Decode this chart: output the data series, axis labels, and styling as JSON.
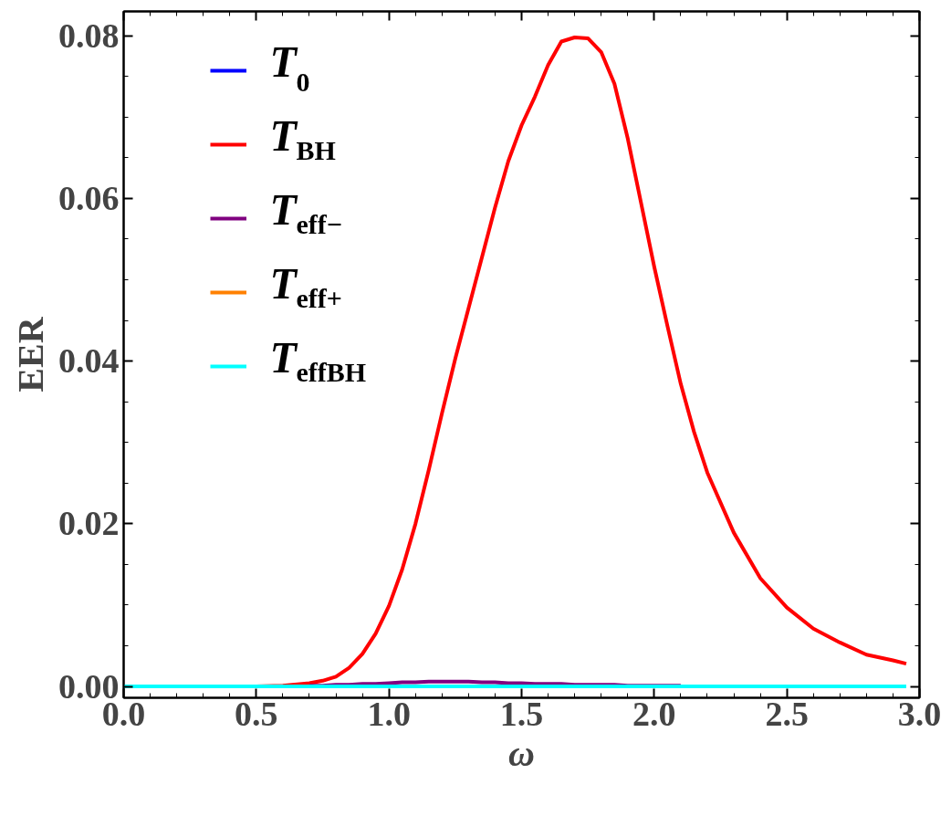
{
  "chart_data": {
    "type": "line",
    "xlabel": "ω",
    "ylabel": "EER",
    "x": [
      0,
      0.5,
      0.6,
      0.7,
      0.75,
      0.8,
      0.85,
      0.9,
      0.95,
      1.0,
      1.05,
      1.1,
      1.15,
      1.2,
      1.25,
      1.3,
      1.35,
      1.4,
      1.45,
      1.5,
      1.55,
      1.6,
      1.65,
      1.7,
      1.75,
      1.8,
      1.85,
      1.9,
      1.95,
      2.0,
      2.05,
      2.1,
      2.15,
      2.2,
      2.3,
      2.4,
      2.5,
      2.6,
      2.7,
      2.8,
      2.9,
      2.95
    ],
    "series": [
      {
        "name": "T$_{0}$",
        "color": "#0000ff",
        "values": [
          null,
          null,
          null,
          null,
          null,
          null,
          null,
          null,
          null,
          null,
          null,
          null,
          null,
          null,
          null,
          null,
          null,
          null,
          null,
          null,
          null,
          null,
          null,
          null,
          null,
          null,
          null,
          null,
          null,
          null,
          null,
          null,
          null,
          null,
          null,
          null,
          null,
          null,
          null,
          null,
          null,
          null
        ]
      },
      {
        "name": "T$_{BH}$",
        "color": "#ff0000",
        "values": [
          0,
          0,
          0.0001,
          0.0004,
          0.0007,
          0.0012,
          0.0023,
          0.004,
          0.0065,
          0.0099,
          0.0144,
          0.02,
          0.0266,
          0.0336,
          0.0403,
          0.0465,
          0.0527,
          0.0589,
          0.0646,
          0.069,
          0.0725,
          0.0764,
          0.0793,
          0.0798,
          0.0797,
          0.078,
          0.0741,
          0.0674,
          0.0595,
          0.0516,
          0.0443,
          0.0372,
          0.0313,
          0.0263,
          0.0189,
          0.0133,
          0.0097,
          0.0071,
          0.0054,
          0.0039,
          0.0032,
          0.0028
        ]
      },
      {
        "name": "T$_{eff−}$",
        "color": "#800080",
        "values": [
          null,
          null,
          null,
          0.0001,
          0.0001,
          0.0002,
          0.0002,
          0.0003,
          0.0003,
          0.0004,
          0.0005,
          0.0005,
          0.0006,
          0.0006,
          0.0006,
          0.0006,
          0.0005,
          0.0005,
          0.0004,
          0.0004,
          0.0003,
          0.0003,
          0.0003,
          0.0002,
          0.0002,
          0.0002,
          0.0002,
          0.0001,
          0.0001,
          0.0001,
          0.0001,
          0.0001,
          null,
          null,
          null,
          null,
          null,
          null,
          null,
          null,
          null,
          null
        ]
      },
      {
        "name": "T$_{eff+}$",
        "color": "#ff8000",
        "values": [
          null,
          null,
          null,
          null,
          null,
          null,
          null,
          null,
          null,
          null,
          null,
          null,
          null,
          null,
          null,
          null,
          null,
          null,
          null,
          null,
          null,
          null,
          null,
          null,
          null,
          null,
          null,
          null,
          null,
          null,
          null,
          null,
          null,
          null,
          null,
          null,
          null,
          null,
          null,
          null,
          null,
          null
        ]
      },
      {
        "name": "T$_{effBH}$",
        "color": "#00ffff",
        "values": [
          0,
          0,
          0,
          0,
          0,
          0,
          0,
          0,
          0,
          0,
          0,
          0,
          0,
          0,
          0,
          0,
          0,
          0,
          0,
          0,
          0,
          0,
          0,
          0,
          0,
          0,
          0,
          0,
          0,
          0,
          0,
          0,
          0,
          0,
          0,
          0,
          0,
          0,
          0,
          0,
          0,
          0
        ]
      }
    ],
    "xlim": [
      0,
      3.0
    ],
    "xticks": [
      {
        "value": 0,
        "label": "0.0"
      },
      0.5,
      {
        "value": 1,
        "label": "1.0"
      },
      1.5,
      {
        "value": 2,
        "label": "2.0"
      },
      2.5,
      {
        "value": 3,
        "label": "3.0"
      }
    ],
    "ylim": [
      -0.0014,
      0.083
    ],
    "yticks": [
      {
        "value": 0,
        "label": "0.00"
      },
      0.02,
      0.04,
      0.06,
      0.08
    ],
    "legend": "top left",
    "grid": false,
    "line_style": "solid",
    "marker": "none"
  }
}
